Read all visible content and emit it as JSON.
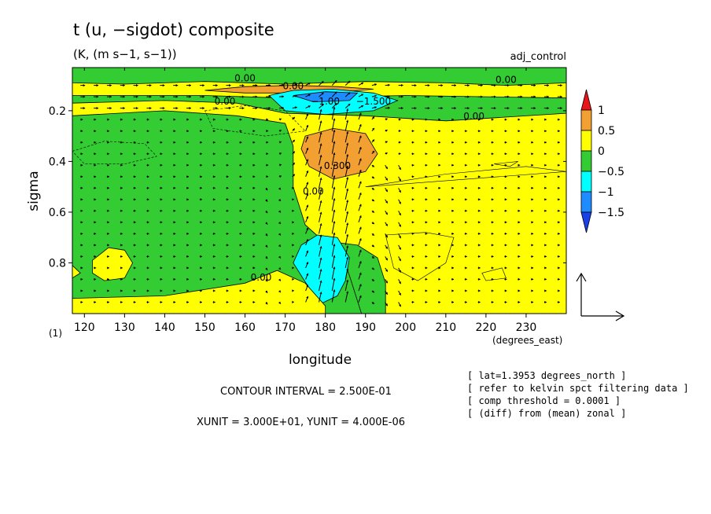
{
  "chart_data": {
    "type": "heatmap",
    "title": "t (u, −sigdot) composite",
    "subtitle": "(K, (m s−1, s−1))",
    "dataset_label": "adj_control",
    "xlabel": "longitude",
    "xunit": "(degrees_east)",
    "ylabel": "sigma",
    "axis_corner_label": "(1)",
    "xlim": [
      117,
      240
    ],
    "ylim": [
      1.0,
      0.03
    ],
    "xticks": [
      120,
      130,
      140,
      150,
      160,
      170,
      180,
      190,
      200,
      210,
      220,
      230
    ],
    "xtick_labels": [
      "120",
      "130",
      "140",
      "150",
      "160",
      "170",
      "180",
      "190",
      "200",
      "210",
      "220",
      "230"
    ],
    "yticks": [
      0.2,
      0.4,
      0.6,
      0.8
    ],
    "ytick_labels": [
      "0.2",
      "0.4",
      "0.6",
      "0.8"
    ],
    "colorbar": {
      "labels": [
        "1",
        "0.5",
        "0",
        "−0.5",
        "−1",
        "−1.5"
      ],
      "colors": [
        "#e8141a",
        "#f2a032",
        "#ffff00",
        "#33cc33",
        "#00ffff",
        "#1e8cff",
        "#1a40e8"
      ]
    },
    "fill_colors": {
      "pos_strong": "#f2a032",
      "pos": "#ffff00",
      "neg": "#33cc33",
      "neg_strong": "#00ffff",
      "neg_stronger": "#1e8cff"
    },
    "regions": [
      {
        "name": "upper-green-band",
        "level": "neg",
        "points": [
          [
            117,
            0.03
          ],
          [
            240,
            0.03
          ],
          [
            240,
            0.09
          ],
          [
            225,
            0.1
          ],
          [
            210,
            0.09
          ],
          [
            190,
            0.085
          ],
          [
            170,
            0.095
          ],
          [
            150,
            0.085
          ],
          [
            130,
            0.095
          ],
          [
            117,
            0.09
          ]
        ]
      },
      {
        "name": "upper-green-band-2",
        "level": "neg",
        "points": [
          [
            117,
            0.17
          ],
          [
            140,
            0.16
          ],
          [
            158,
            0.17
          ],
          [
            170,
            0.21
          ],
          [
            190,
            0.22
          ],
          [
            210,
            0.24
          ],
          [
            240,
            0.21
          ],
          [
            240,
            0.15
          ],
          [
            200,
            0.14
          ],
          [
            170,
            0.15
          ],
          [
            150,
            0.14
          ],
          [
            117,
            0.14
          ]
        ]
      },
      {
        "name": "lower-left-green",
        "level": "neg",
        "points": [
          [
            117,
            0.22
          ],
          [
            140,
            0.2
          ],
          [
            158,
            0.22
          ],
          [
            170,
            0.25
          ],
          [
            172,
            0.34
          ],
          [
            172,
            0.5
          ],
          [
            175,
            0.65
          ],
          [
            182,
            0.75
          ],
          [
            188,
            0.85
          ],
          [
            190,
            1.0
          ],
          [
            117,
            1.0
          ]
        ]
      },
      {
        "name": "right-green-column",
        "level": "neg",
        "points": [
          [
            183,
            0.72
          ],
          [
            188,
            0.73
          ],
          [
            193,
            0.78
          ],
          [
            195,
            0.88
          ],
          [
            195,
            1.0
          ],
          [
            189,
            1.0
          ],
          [
            186,
            0.85
          ]
        ]
      },
      {
        "name": "upper-orange-lens",
        "level": "pos_strong",
        "points": [
          [
            150,
            0.12
          ],
          [
            160,
            0.105
          ],
          [
            172,
            0.1
          ],
          [
            183,
            0.105
          ],
          [
            192,
            0.115
          ],
          [
            185,
            0.125
          ],
          [
            172,
            0.13
          ],
          [
            160,
            0.13
          ]
        ]
      },
      {
        "name": "upper-blue-lens",
        "level": "neg_strong",
        "points": [
          [
            166,
            0.14
          ],
          [
            172,
            0.12
          ],
          [
            182,
            0.115
          ],
          [
            192,
            0.13
          ],
          [
            198,
            0.16
          ],
          [
            192,
            0.2
          ],
          [
            180,
            0.215
          ],
          [
            170,
            0.2
          ]
        ]
      },
      {
        "name": "upper-deep-blue",
        "level": "neg_stronger",
        "points": [
          [
            172,
            0.14
          ],
          [
            180,
            0.125
          ],
          [
            188,
            0.13
          ],
          [
            186,
            0.16
          ],
          [
            177,
            0.165
          ]
        ]
      },
      {
        "name": "mid-orange-blob",
        "level": "pos_strong",
        "points": [
          [
            175,
            0.3
          ],
          [
            182,
            0.27
          ],
          [
            190,
            0.29
          ],
          [
            193,
            0.37
          ],
          [
            190,
            0.44
          ],
          [
            182,
            0.47
          ],
          [
            176,
            0.42
          ],
          [
            174,
            0.35
          ]
        ]
      },
      {
        "name": "lower-cyan-blob",
        "level": "neg_strong",
        "points": [
          [
            174,
            0.73
          ],
          [
            178,
            0.69
          ],
          [
            183,
            0.7
          ],
          [
            186,
            0.78
          ],
          [
            185,
            0.87
          ],
          [
            183,
            0.93
          ],
          [
            179,
            0.96
          ],
          [
            176,
            0.9
          ],
          [
            172,
            0.8
          ]
        ]
      },
      {
        "name": "lower-left-yellow-blob",
        "level": "pos",
        "points": [
          [
            122,
            0.79
          ],
          [
            126,
            0.74
          ],
          [
            130,
            0.75
          ],
          [
            132,
            0.8
          ],
          [
            130,
            0.86
          ],
          [
            125,
            0.87
          ],
          [
            122,
            0.84
          ]
        ]
      },
      {
        "name": "lower-left-yellow-edge",
        "level": "pos",
        "points": [
          [
            117,
            0.81
          ],
          [
            119,
            0.84
          ],
          [
            117,
            0.86
          ]
        ]
      },
      {
        "name": "lower-yellow-wedge",
        "level": "pos",
        "points": [
          [
            117,
            0.94
          ],
          [
            140,
            0.93
          ],
          [
            160,
            0.88
          ],
          [
            168,
            0.83
          ],
          [
            175,
            0.88
          ],
          [
            180,
            0.97
          ],
          [
            180,
            1.0
          ],
          [
            117,
            1.0
          ]
        ]
      }
    ],
    "contour_labels": [
      {
        "text": "0.00",
        "x": 160,
        "y": 0.085
      },
      {
        "text": "0.00",
        "x": 225,
        "y": 0.09
      },
      {
        "text": "0.00",
        "x": 155,
        "y": 0.175
      },
      {
        "text": "0.00",
        "x": 172,
        "y": 0.115
      },
      {
        "text": "−1.00",
        "x": 180,
        "y": 0.175
      },
      {
        "text": "−1.500",
        "x": 192,
        "y": 0.175
      },
      {
        "text": "0.00",
        "x": 217,
        "y": 0.235
      },
      {
        "text": "0.300",
        "x": 183,
        "y": 0.43
      },
      {
        "text": "0.00",
        "x": 177,
        "y": 0.53
      },
      {
        "text": "0.00",
        "x": 164,
        "y": 0.87
      }
    ],
    "reference_vector": {
      "xunit": 30.0,
      "yunit": 4e-06
    }
  },
  "footer": {
    "contour_interval": "CONTOUR INTERVAL = 2.500E-01",
    "units": "XUNIT = 3.000E+01, YUNIT = 4.000E-06",
    "notes": [
      "[ lat=1.3953 degrees_north ]",
      "[ refer to kelvin spct filtering data ]",
      "[ comp threshold = 0.0001 ]",
      "[ (diff) from (mean) zonal ]"
    ]
  }
}
